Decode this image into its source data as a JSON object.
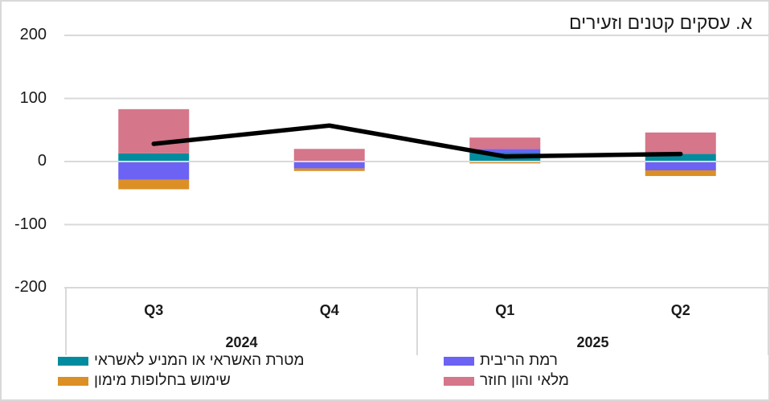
{
  "chart_data": {
    "type": "combo-stacked-bar-line",
    "title": "א. עסקים קטנים וזעירים",
    "categories": [
      "Q3",
      "Q4",
      "Q1",
      "Q2"
    ],
    "year_groups": [
      {
        "label": "2024",
        "span": [
          0,
          1
        ]
      },
      {
        "label": "2025",
        "span": [
          2,
          3
        ]
      }
    ],
    "yticks": [
      200,
      100,
      0,
      -100,
      -200
    ],
    "ylim": [
      -200,
      250
    ],
    "grid": true,
    "legend_position": "bottom",
    "colors": {
      "teal": "#008c9e",
      "blue": "#6c63f4",
      "orange": "#dc8f24",
      "pink": "#d5768a",
      "line": "#000000",
      "gridline": "#d9d9d9"
    },
    "bar_series": [
      {
        "name": "מטרת האשראי או המניע לאשראי",
        "color": "#008c9e",
        "values": [
          13,
          0,
          14,
          12
        ]
      },
      {
        "name": "רמת הריבית",
        "color": "#6c63f4",
        "values": [
          -29,
          -11,
          6,
          -14
        ]
      },
      {
        "name": "שימוש בחלופות מימון",
        "color": "#dc8f24",
        "values": [
          -15,
          -4,
          -3,
          -9
        ]
      },
      {
        "name": "מלאי והון חוזר",
        "color": "#d5768a",
        "values": [
          70,
          20,
          18,
          34
        ]
      }
    ],
    "line_series": {
      "color": "#000000",
      "values": [
        28,
        57,
        8,
        12
      ]
    }
  }
}
